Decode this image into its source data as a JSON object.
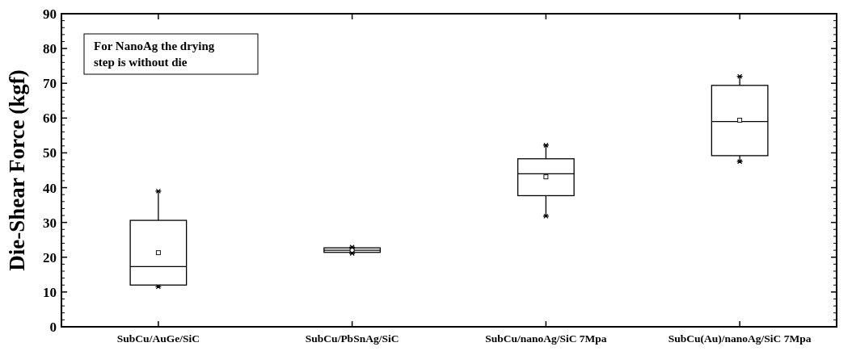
{
  "chart_data": {
    "type": "box",
    "ylabel": "Die-Shear Force (kgf)",
    "categories": [
      "SubCu/AuGe/SiC",
      "SubCu/PbSnAg/SiC",
      "SubCu/nanoAg/SiC 7Mpa",
      "SubCu(Au)/nanoAg/SiC 7Mpa"
    ],
    "boxes": [
      {
        "low": 11.5,
        "q1": 12,
        "median": 17.3,
        "q3": 30.6,
        "high": 39,
        "mean": 21.3
      },
      {
        "low": 21.1,
        "q1": 21.4,
        "median": 22,
        "q3": 22.7,
        "high": 22.9,
        "mean": 22
      },
      {
        "low": 31.8,
        "q1": 37.7,
        "median": 44,
        "q3": 48.3,
        "high": 52.2,
        "mean": 43.1
      },
      {
        "low": 47.5,
        "q1": 49.2,
        "median": 59,
        "q3": 69.4,
        "high": 72,
        "mean": 59.4
      }
    ],
    "ylim": [
      0,
      90
    ],
    "yticks": [
      0,
      10,
      20,
      30,
      40,
      50,
      60,
      70,
      80,
      90
    ],
    "annotations": [
      "For NanoAg the drying step is without die"
    ],
    "grid": false
  }
}
